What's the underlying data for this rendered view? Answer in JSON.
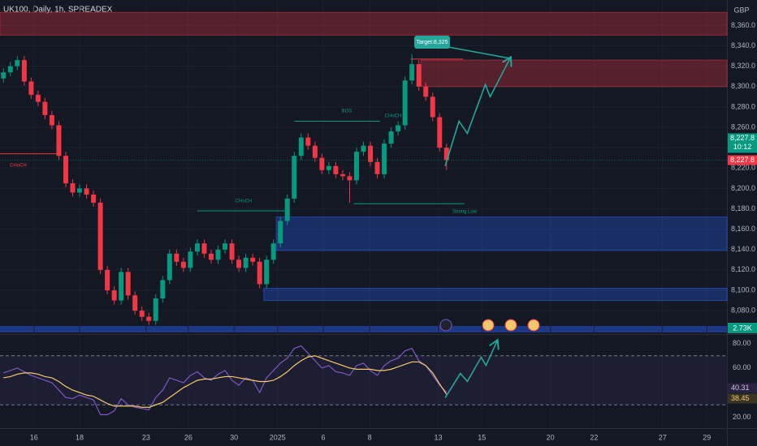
{
  "header": {
    "symbol": "UK100, Daily, 1h, SPREADEX",
    "currency": "GBP"
  },
  "chart_data": [
    {
      "type": "candlestick",
      "x": [
        0,
        1,
        2,
        3,
        4,
        5,
        6,
        7,
        8,
        9,
        10,
        11,
        12,
        13,
        14,
        15,
        16,
        17,
        18,
        19,
        20,
        21,
        22,
        23,
        24,
        25,
        26,
        27,
        28,
        29,
        30,
        31,
        32,
        33,
        34,
        35,
        36,
        37,
        38,
        39,
        40,
        41,
        42,
        43,
        44,
        45,
        46,
        47,
        48,
        49,
        50,
        51,
        52,
        53,
        54,
        55,
        56,
        57,
        58,
        59,
        60,
        61,
        62,
        63,
        64
      ],
      "open": [
        8308,
        8314,
        8320,
        8326,
        8305,
        8292,
        8285,
        8272,
        8262,
        8232,
        8205,
        8196,
        8200,
        8194,
        8186,
        8120,
        8100,
        8090,
        8118,
        8095,
        8080,
        8074,
        8070,
        8092,
        8110,
        8136,
        8128,
        8122,
        8138,
        8146,
        8136,
        8130,
        8140,
        8146,
        8130,
        8122,
        8132,
        8128,
        8106,
        8130,
        8146,
        8168,
        8190,
        8232,
        8250,
        8242,
        8230,
        8218,
        8222,
        8214,
        8212,
        8208,
        8236,
        8242,
        8226,
        8214,
        8244,
        8256,
        8262,
        8306,
        8322,
        8300,
        8290,
        8270,
        8240
      ],
      "high": [
        8318,
        8324,
        8330,
        8330,
        8309,
        8296,
        8289,
        8276,
        8266,
        8236,
        8209,
        8204,
        8204,
        8198,
        8190,
        8124,
        8104,
        8122,
        8122,
        8099,
        8084,
        8078,
        8096,
        8114,
        8140,
        8140,
        8132,
        8142,
        8150,
        8150,
        8140,
        8144,
        8150,
        8150,
        8134,
        8136,
        8136,
        8132,
        8134,
        8150,
        8172,
        8194,
        8236,
        8254,
        8254,
        8246,
        8234,
        8226,
        8226,
        8218,
        8216,
        8240,
        8246,
        8246,
        8230,
        8248,
        8260,
        8266,
        8310,
        8332,
        8326,
        8304,
        8294,
        8274,
        8244
      ],
      "low": [
        8304,
        8310,
        8316,
        8301,
        8288,
        8281,
        8268,
        8258,
        8228,
        8201,
        8192,
        8192,
        8190,
        8182,
        8116,
        8096,
        8086,
        8086,
        8091,
        8076,
        8070,
        8066,
        8066,
        8088,
        8106,
        8124,
        8118,
        8118,
        8134,
        8132,
        8126,
        8126,
        8136,
        8126,
        8118,
        8118,
        8124,
        8102,
        8102,
        8126,
        8142,
        8164,
        8186,
        8228,
        8238,
        8226,
        8214,
        8214,
        8210,
        8208,
        8186,
        8204,
        8232,
        8222,
        8210,
        8210,
        8240,
        8252,
        8258,
        8302,
        8296,
        8286,
        8266,
        8236,
        8218
      ],
      "close": [
        8314,
        8320,
        8326,
        8305,
        8292,
        8285,
        8272,
        8262,
        8232,
        8205,
        8196,
        8200,
        8194,
        8186,
        8120,
        8100,
        8090,
        8118,
        8095,
        8080,
        8074,
        8070,
        8092,
        8110,
        8136,
        8128,
        8122,
        8138,
        8146,
        8136,
        8130,
        8140,
        8146,
        8130,
        8122,
        8132,
        8128,
        8106,
        8130,
        8146,
        8168,
        8190,
        8232,
        8250,
        8242,
        8230,
        8218,
        8222,
        8214,
        8212,
        8208,
        8236,
        8242,
        8226,
        8214,
        8244,
        8256,
        8262,
        8306,
        8322,
        8300,
        8290,
        8270,
        8240,
        8227.8
      ],
      "up_color": "#089981",
      "down_color": "#f23645",
      "xlim": [
        -0.5,
        104.5
      ],
      "ylim": [
        8057,
        8385
      ],
      "yticks": [
        {
          "value": 8080,
          "label": "8,080.0"
        },
        {
          "value": 8100,
          "label": "8,100.0"
        },
        {
          "value": 8120,
          "label": "8,120.0"
        },
        {
          "value": 8140,
          "label": "8,140.0"
        },
        {
          "value": 8160,
          "label": "8,160.0"
        },
        {
          "value": 8180,
          "label": "8,180.0"
        },
        {
          "value": 8200,
          "label": "8,200.0"
        },
        {
          "value": 8220,
          "label": "8,220.0"
        },
        {
          "value": 8240,
          "label": "8,240.0"
        },
        {
          "value": 8260,
          "label": "8,260.0"
        },
        {
          "value": 8280,
          "label": "8,280.0"
        },
        {
          "value": 8300,
          "label": "8,300.0"
        },
        {
          "value": 8320,
          "label": "8,320.0"
        },
        {
          "value": 8340,
          "label": "8,340.0"
        },
        {
          "value": 8360,
          "label": "8,360.0"
        }
      ],
      "zones": [
        {
          "from": 8350.5,
          "to": 8372.8,
          "start": -0.5,
          "color": "#f23645"
        },
        {
          "from": 8300,
          "to": 8326,
          "start": 60.3,
          "color": "#f23645"
        },
        {
          "from": 8139,
          "to": 8172,
          "start": 39.4,
          "color": "#2962ff"
        },
        {
          "from": 8090,
          "to": 8102,
          "start": 37.6,
          "color": "#2962ff"
        }
      ],
      "levels": [
        {
          "value": 8234,
          "start": -0.5,
          "end": 7.7,
          "color": "#f23645"
        },
        {
          "value": 8178,
          "start": 28,
          "end": 40.6,
          "color": "#089981"
        },
        {
          "value": 8266,
          "start": 42,
          "end": 54.4,
          "color": "#089981"
        },
        {
          "value": 8185,
          "start": 50.6,
          "end": 66.6,
          "color": "#089981"
        },
        {
          "value": 8327,
          "start": 58.8,
          "end": 66.4,
          "color": "#f23645"
        }
      ],
      "projection": {
        "x": [
          63.8,
          65.8,
          67,
          69.6,
          70.3,
          73.2
        ],
        "values": [
          8222,
          8266,
          8254,
          8302,
          8290,
          8328
        ],
        "color": "#26a69a"
      },
      "annotations": [
        {
          "text": "CHoCH",
          "color": "#f23645"
        },
        {
          "text": "CHoCH",
          "color": "#089981"
        },
        {
          "text": "BOS",
          "color": "#089981"
        },
        {
          "text": "CHoCH",
          "color": "#089981"
        },
        {
          "text": "Strong Low",
          "color": "#089981"
        },
        {
          "text": "Target:8,325",
          "color": "#ffffff"
        }
      ],
      "price_labels": [
        {
          "value": 8227.8,
          "label": "8,227.8",
          "color": "#089981"
        },
        {
          "value": 8227.8,
          "label": "8,227.8",
          "color": "#f23645"
        }
      ],
      "countdown": "10:12",
      "volume_label": "2.73K"
    },
    {
      "type": "line",
      "x": [
        0,
        1,
        2,
        3,
        4,
        5,
        6,
        7,
        8,
        9,
        10,
        11,
        12,
        13,
        14,
        15,
        16,
        17,
        18,
        19,
        20,
        21,
        22,
        23,
        24,
        25,
        26,
        27,
        28,
        29,
        30,
        31,
        32,
        33,
        34,
        35,
        36,
        37,
        38,
        39,
        40,
        41,
        42,
        43,
        44,
        45,
        46,
        47,
        48,
        49,
        50,
        51,
        52,
        53,
        54,
        55,
        56,
        57,
        58,
        59,
        60,
        61,
        62,
        63,
        64
      ],
      "series": [
        {
          "color": "#7e57c2",
          "values": [
            56,
            58,
            60,
            57,
            54,
            52,
            50,
            48,
            42,
            36,
            35,
            38,
            36,
            34,
            22,
            22,
            25,
            35,
            30,
            28,
            27,
            26,
            36,
            42,
            52,
            50,
            48,
            54,
            57,
            52,
            50,
            55,
            58,
            50,
            46,
            52,
            50,
            40,
            52,
            58,
            64,
            68,
            76,
            78,
            72,
            66,
            60,
            62,
            57,
            56,
            54,
            62,
            64,
            58,
            54,
            62,
            66,
            68,
            74,
            76,
            66,
            62,
            54,
            46,
            40.31
          ],
          "value_label": "40.31"
        },
        {
          "color": "#f5c96b",
          "values": [
            52,
            53,
            55,
            56,
            56,
            55,
            53,
            52,
            49,
            45,
            42,
            40,
            38,
            37,
            34,
            31,
            29,
            29,
            29,
            29,
            28,
            28,
            30,
            32,
            36,
            40,
            44,
            47,
            50,
            51,
            51,
            52,
            53,
            53,
            52,
            51,
            50,
            49,
            49,
            50,
            53,
            57,
            62,
            66,
            69,
            70,
            68,
            66,
            64,
            62,
            60,
            59,
            59,
            59,
            58,
            58,
            59,
            61,
            63,
            65,
            65,
            62,
            56,
            47,
            38.45
          ],
          "value_label": "38.45"
        }
      ],
      "xlim": [
        -0.5,
        104.5
      ],
      "ylim": [
        11,
        87
      ],
      "yticks": [
        {
          "value": 20,
          "label": "20.00"
        },
        {
          "value": 60,
          "label": "60.00"
        },
        {
          "value": 80,
          "label": "80.00"
        }
      ],
      "bands": [
        30,
        70
      ],
      "projection": {
        "x": [
          63.8,
          66,
          67,
          69,
          69.7,
          71.3
        ],
        "values": [
          35.8,
          55.6,
          49,
          68.8,
          62.2,
          82
        ],
        "color": "#26a69a"
      },
      "xticks": [
        {
          "value": 4.4,
          "label": "16"
        },
        {
          "value": 11,
          "label": "18"
        },
        {
          "value": 20.6,
          "label": "23"
        },
        {
          "value": 26.7,
          "label": "26"
        },
        {
          "value": 33.3,
          "label": "30"
        },
        {
          "value": 39.6,
          "label": "2025"
        },
        {
          "value": 46.2,
          "label": "6"
        },
        {
          "value": 52.9,
          "label": "8"
        },
        {
          "value": 62.8,
          "label": "13"
        },
        {
          "value": 69.1,
          "label": "15"
        },
        {
          "value": 79,
          "label": "20"
        },
        {
          "value": 85.3,
          "label": "22"
        },
        {
          "value": 95.2,
          "label": "27"
        },
        {
          "value": 101.6,
          "label": "29"
        }
      ]
    }
  ]
}
